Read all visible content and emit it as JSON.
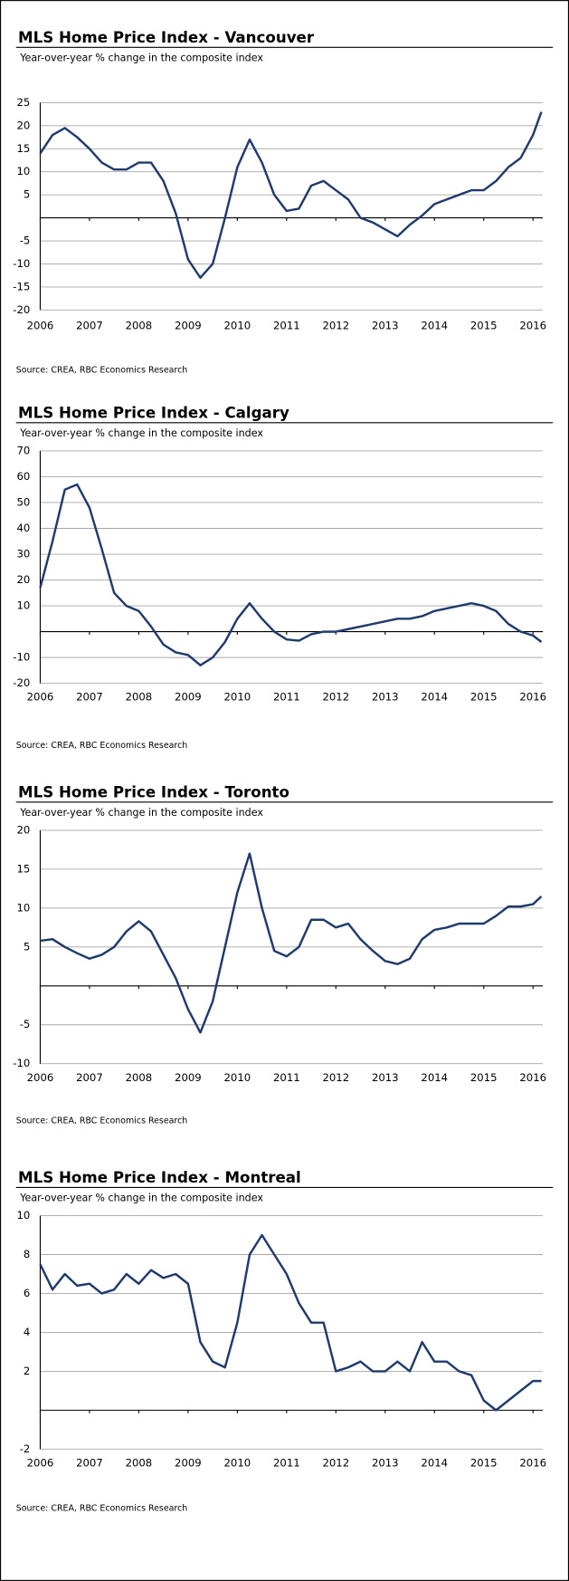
{
  "chart_data": [
    {
      "type": "line",
      "title": "MLS Home Price Index - Vancouver",
      "subtitle": "Year-over-year % change in the composite index",
      "source": "Source: CREA, RBC Economics Research",
      "x": [
        2006,
        2006.25,
        2006.5,
        2006.75,
        2007,
        2007.25,
        2007.5,
        2007.75,
        2008,
        2008.25,
        2008.5,
        2008.75,
        2009,
        2009.25,
        2009.5,
        2009.75,
        2010,
        2010.25,
        2010.5,
        2010.75,
        2011,
        2011.25,
        2011.5,
        2011.75,
        2012,
        2012.25,
        2012.5,
        2012.75,
        2013,
        2013.25,
        2013.5,
        2013.75,
        2014,
        2014.25,
        2014.5,
        2014.75,
        2015,
        2015.25,
        2015.5,
        2015.75,
        2016,
        2016.17
      ],
      "series": [
        {
          "name": "Vancouver",
          "color": "#1f3b6e",
          "values": [
            14,
            18,
            19.5,
            17.5,
            15,
            12,
            10.5,
            10.5,
            12,
            12,
            8,
            1,
            -9,
            -13,
            -10,
            0,
            11,
            17,
            12,
            5,
            1.5,
            2,
            7,
            8,
            6,
            4,
            0,
            -1,
            -2.5,
            -4,
            -1.5,
            0.5,
            3,
            4,
            5,
            6,
            6,
            8,
            11,
            13,
            18,
            23
          ]
        }
      ],
      "xlim": [
        2006,
        2016.2
      ],
      "xticks": [
        2006,
        2007,
        2008,
        2009,
        2010,
        2011,
        2012,
        2013,
        2014,
        2015,
        2016
      ],
      "ylim": [
        -20,
        25
      ],
      "yticks": [
        -20,
        -15,
        -10,
        -5,
        5,
        10,
        15,
        20,
        25
      ],
      "grid": true
    },
    {
      "type": "line",
      "title": "MLS Home Price Index - Calgary",
      "subtitle": "Year-over-year % change in the composite index",
      "source": "Source: CREA, RBC Economics Research",
      "x": [
        2006,
        2006.25,
        2006.5,
        2006.75,
        2007,
        2007.25,
        2007.5,
        2007.75,
        2008,
        2008.25,
        2008.5,
        2008.75,
        2009,
        2009.25,
        2009.5,
        2009.75,
        2010,
        2010.25,
        2010.5,
        2010.75,
        2011,
        2011.25,
        2011.5,
        2011.75,
        2012,
        2012.25,
        2012.5,
        2012.75,
        2013,
        2013.25,
        2013.5,
        2013.75,
        2014,
        2014.25,
        2014.5,
        2014.75,
        2015,
        2015.25,
        2015.5,
        2015.75,
        2016,
        2016.17
      ],
      "series": [
        {
          "name": "Calgary",
          "color": "#1f3b6e",
          "values": [
            17,
            35,
            55,
            57,
            48,
            32,
            15,
            10,
            8,
            2,
            -5,
            -8,
            -9,
            -13,
            -10,
            -4,
            5,
            11,
            5,
            0,
            -3,
            -3.5,
            -1,
            0,
            0,
            1,
            2,
            3,
            4,
            5,
            5,
            6,
            8,
            9,
            10,
            11,
            10,
            8,
            3,
            0,
            -1.5,
            -4
          ]
        }
      ],
      "xlim": [
        2006,
        2016.2
      ],
      "xticks": [
        2006,
        2007,
        2008,
        2009,
        2010,
        2011,
        2012,
        2013,
        2014,
        2015,
        2016
      ],
      "ylim": [
        -20,
        70
      ],
      "yticks": [
        -20,
        -10,
        10,
        20,
        30,
        40,
        50,
        60,
        70
      ],
      "grid": true
    },
    {
      "type": "line",
      "title": "MLS Home Price Index - Toronto",
      "subtitle": "Year-over-year % change in the composite index",
      "source": "Source: CREA, RBC Economics Research",
      "x": [
        2006,
        2006.25,
        2006.5,
        2006.75,
        2007,
        2007.25,
        2007.5,
        2007.75,
        2008,
        2008.25,
        2008.5,
        2008.75,
        2009,
        2009.25,
        2009.5,
        2009.75,
        2010,
        2010.25,
        2010.5,
        2010.75,
        2011,
        2011.25,
        2011.5,
        2011.75,
        2012,
        2012.25,
        2012.5,
        2012.75,
        2013,
        2013.25,
        2013.5,
        2013.75,
        2014,
        2014.25,
        2014.5,
        2014.75,
        2015,
        2015.25,
        2015.5,
        2015.75,
        2016,
        2016.17
      ],
      "series": [
        {
          "name": "Toronto",
          "color": "#1f3b6e",
          "values": [
            5.8,
            6,
            5,
            4.2,
            3.5,
            4,
            5,
            7,
            8.3,
            7,
            4,
            1,
            -3,
            -6,
            -2,
            5,
            12,
            17,
            10,
            4.5,
            3.8,
            5,
            8.5,
            8.5,
            7.5,
            8,
            6,
            4.5,
            3.2,
            2.8,
            3.5,
            6,
            7.2,
            7.5,
            8,
            8,
            8,
            9,
            10.2,
            10.2,
            10.5,
            11.5
          ]
        }
      ],
      "xlim": [
        2006,
        2016.2
      ],
      "xticks": [
        2006,
        2007,
        2008,
        2009,
        2010,
        2011,
        2012,
        2013,
        2014,
        2015,
        2016
      ],
      "ylim": [
        -10,
        20
      ],
      "yticks": [
        -10,
        -5,
        5,
        10,
        15,
        20
      ],
      "grid": true
    },
    {
      "type": "line",
      "title": "MLS Home Price Index - Montreal",
      "subtitle": "Year-over-year % change in the composite index",
      "source": "Source: CREA, RBC Economics Research",
      "x": [
        2006,
        2006.25,
        2006.5,
        2006.75,
        2007,
        2007.25,
        2007.5,
        2007.75,
        2008,
        2008.25,
        2008.5,
        2008.75,
        2009,
        2009.25,
        2009.5,
        2009.75,
        2010,
        2010.25,
        2010.5,
        2010.75,
        2011,
        2011.25,
        2011.5,
        2011.75,
        2012,
        2012.25,
        2012.5,
        2012.75,
        2013,
        2013.25,
        2013.5,
        2013.75,
        2014,
        2014.25,
        2014.5,
        2014.75,
        2015,
        2015.25,
        2015.5,
        2015.75,
        2016,
        2016.17
      ],
      "series": [
        {
          "name": "Montreal",
          "color": "#1f3b6e",
          "values": [
            7.5,
            6.2,
            7,
            6.4,
            6.5,
            6,
            6.2,
            7,
            6.5,
            7.2,
            6.8,
            7,
            6.5,
            3.5,
            2.5,
            2.2,
            4.5,
            8,
            9,
            8,
            7,
            5.5,
            4.5,
            4.5,
            2,
            2.2,
            2.5,
            2,
            2,
            2.5,
            2,
            3.5,
            2.5,
            2.5,
            2,
            1.8,
            0.5,
            0,
            0.5,
            1,
            1.5,
            1.5
          ]
        }
      ],
      "xlim": [
        2006,
        2016.2
      ],
      "xticks": [
        2006,
        2007,
        2008,
        2009,
        2010,
        2011,
        2012,
        2013,
        2014,
        2015,
        2016
      ],
      "ylim": [
        -2,
        10
      ],
      "yticks": [
        -2,
        2,
        4,
        6,
        8,
        10
      ],
      "grid": true
    }
  ]
}
